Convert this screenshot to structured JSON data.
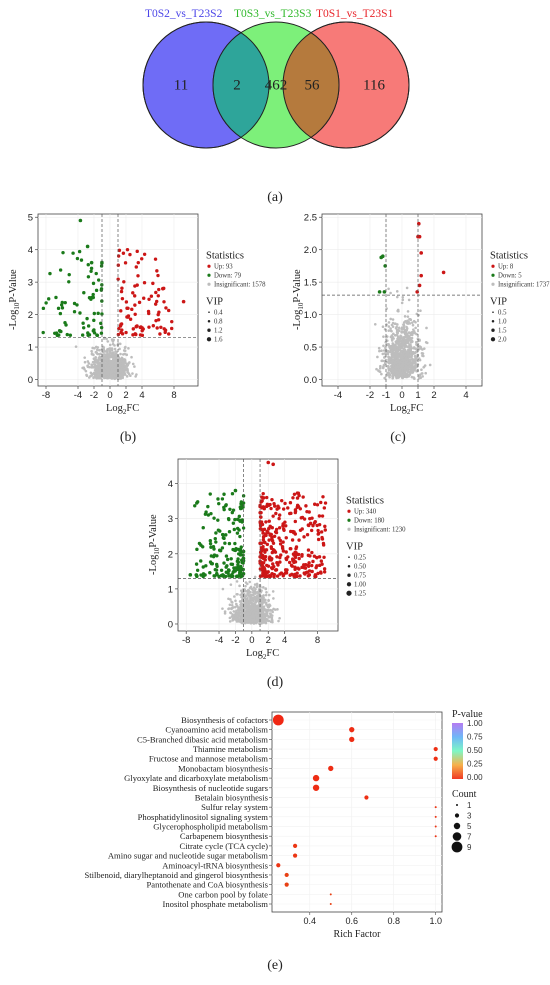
{
  "venn": {
    "sets": [
      {
        "label": "T0S2_vs_T23S2",
        "color": "#4b45e8",
        "fill": "#6f6cf6"
      },
      {
        "label": "T0S3_vs_T23S3",
        "color": "#38c928",
        "fill": "#7df07a"
      },
      {
        "label": "T0S1_vs_T23S1",
        "color": "#e8242a",
        "fill": "#f77a78"
      }
    ],
    "regions": {
      "only_a": "11",
      "a_and_b": "2",
      "only_b": "462",
      "b_and_c": "56",
      "only_c": "116"
    },
    "overlap_colors": {
      "a_and_b": "#2ea59a",
      "b_and_c": "#b57a3d"
    }
  },
  "panel_labels": {
    "a": "(a)",
    "b": "(b)",
    "c": "(c)",
    "d": "(d)",
    "e": "(e)"
  },
  "volcano": {
    "ylabel": "-Log",
    "ylabel_sub": "10",
    "ylabel_tail": "P-Value",
    "xlabel": "Log",
    "xlabel_sub": "2",
    "xlabel_tail": "FC",
    "stats_title": "Statistics",
    "vip_title": "VIP",
    "colors": {
      "up": "#cc1616",
      "down": "#1a7a1a",
      "ns": "#bdbdbd"
    }
  },
  "chart_data": [
    {
      "type": "scatter",
      "panel": "b",
      "xlim": [
        -9,
        11
      ],
      "ylim": [
        -0.2,
        5.1
      ],
      "xticks": [
        "-8",
        "-4",
        "-2",
        "0",
        "2",
        "4",
        "8"
      ],
      "xtick_values": [
        -8,
        -4,
        -2,
        0,
        2,
        4,
        8
      ],
      "yticks": [
        "0",
        "1",
        "2",
        "3",
        "4",
        "5"
      ],
      "ytick_values": [
        0,
        1,
        2,
        3,
        4,
        5
      ],
      "threshold_y": 1.3,
      "threshold_x": [
        -1,
        1
      ],
      "legend": {
        "up": "Up: 93",
        "down": "Down: 79",
        "ns": "Insignificant: 1578"
      },
      "vip_levels": [
        "0.4",
        "0.8",
        "1.2",
        "1.6"
      ],
      "counts": {
        "up": 93,
        "down": 79,
        "ns": 1578
      },
      "highlights": [
        {
          "x": -3.7,
          "y": 4.9,
          "group": "down"
        },
        {
          "x": -2.8,
          "y": 4.1,
          "group": "down"
        },
        {
          "x": -2.3,
          "y": 3.6,
          "group": "down"
        },
        {
          "x": 6.6,
          "y": 2.8,
          "group": "up"
        },
        {
          "x": 9.2,
          "y": 2.4,
          "group": "up"
        }
      ],
      "up_x_range": [
        1,
        8
      ],
      "down_x_range": [
        -8.5,
        -1
      ]
    },
    {
      "type": "scatter",
      "panel": "c",
      "xlim": [
        -5,
        5
      ],
      "ylim": [
        -0.1,
        2.55
      ],
      "xticks": [
        "-4",
        "-2",
        "-1",
        "0",
        "1",
        "2",
        "4"
      ],
      "xtick_values": [
        -4,
        -2,
        -1,
        0,
        1,
        2,
        4
      ],
      "yticks": [
        "0.0",
        "0.5",
        "1.0",
        "1.5",
        "2.0",
        "2.5"
      ],
      "ytick_values": [
        0,
        0.5,
        1,
        1.5,
        2,
        2.5
      ],
      "threshold_y": 1.3,
      "threshold_x": [
        -1,
        1
      ],
      "legend": {
        "up": "Up: 8",
        "down": "Down: 5",
        "ns": "Insignificant: 1737"
      },
      "vip_levels": [
        "0.5",
        "1.0",
        "1.5",
        "2.0"
      ],
      "counts": {
        "up": 8,
        "down": 5,
        "ns": 1737
      },
      "highlights": [
        {
          "x": 1.05,
          "y": 2.4,
          "group": "up"
        },
        {
          "x": 1.1,
          "y": 2.2,
          "group": "up"
        },
        {
          "x": 1.2,
          "y": 1.95,
          "group": "up"
        },
        {
          "x": 1.2,
          "y": 1.6,
          "group": "up"
        },
        {
          "x": 2.6,
          "y": 1.65,
          "group": "up"
        },
        {
          "x": 1.1,
          "y": 1.45,
          "group": "up"
        },
        {
          "x": 0.95,
          "y": 1.35,
          "group": "up"
        },
        {
          "x": 1.0,
          "y": 2.2,
          "group": "up"
        },
        {
          "x": -1.2,
          "y": 1.9,
          "group": "down"
        },
        {
          "x": -1.3,
          "y": 1.88,
          "group": "down"
        },
        {
          "x": -1.05,
          "y": 1.75,
          "group": "down"
        },
        {
          "x": -1.4,
          "y": 1.35,
          "group": "down"
        },
        {
          "x": -1.1,
          "y": 1.35,
          "group": "down"
        }
      ],
      "up_x_range": [
        1,
        2.7
      ],
      "down_x_range": [
        -1.5,
        -1
      ]
    },
    {
      "type": "scatter",
      "panel": "d",
      "xlim": [
        -9,
        10.5
      ],
      "ylim": [
        -0.2,
        4.7
      ],
      "xticks": [
        "-8",
        "-4",
        "-2",
        "0",
        "2",
        "4",
        "8"
      ],
      "xtick_values": [
        -8,
        -4,
        -2,
        0,
        2,
        4,
        8
      ],
      "yticks": [
        "0",
        "1",
        "2",
        "3",
        "4"
      ],
      "ytick_values": [
        0,
        1,
        2,
        3,
        4
      ],
      "threshold_y": 1.3,
      "threshold_x": [
        -1,
        1
      ],
      "legend": {
        "up": "Up: 340",
        "down": "Down: 180",
        "ns": "Insignificant: 1230"
      },
      "vip_levels": [
        "0.25",
        "0.50",
        "0.75",
        "1.00",
        "1.25"
      ],
      "counts": {
        "up": 340,
        "down": 180,
        "ns": 1230
      },
      "highlights": [
        {
          "x": 2.0,
          "y": 4.6,
          "group": "up"
        },
        {
          "x": 2.6,
          "y": 4.55,
          "group": "up"
        },
        {
          "x": -2.0,
          "y": 3.8,
          "group": "down"
        },
        {
          "x": -7.5,
          "y": 1.4,
          "group": "down"
        }
      ],
      "up_x_range": [
        1,
        9
      ],
      "down_x_range": [
        -7,
        -1
      ]
    },
    {
      "type": "scatter",
      "panel": "e",
      "xlabel": "Rich Factor",
      "ylabel": "",
      "xlim": [
        0.22,
        1.03
      ],
      "xticks": [
        "0.4",
        "0.6",
        "0.8",
        "1.0"
      ],
      "xtick_values": [
        0.4,
        0.6,
        0.8,
        1.0
      ],
      "categories": [
        "Biosynthesis of cofactors",
        "Cyanoamino acid metabolism",
        "C5-Branched dibasic acid metabolism",
        "Thiamine metabolism",
        "Fructose and mannose metabolism",
        "Monobactam biosynthesis",
        "Glyoxylate and dicarboxylate metabolism",
        "Biosynthesis of nucleotide sugars",
        "Betalain biosynthesis",
        "Sulfur relay system",
        "Phosphatidylinositol signaling system",
        "Glycerophospholipid metabolism",
        "Carbapenem biosynthesis",
        "Citrate cycle (TCA cycle)",
        "Amino sugar and nucleotide sugar metabolism",
        "Aminoacyl-tRNA biosynthesis",
        "Stilbenoid, diarylheptanoid and gingerol biosynthesis",
        "Pantothenate and CoA biosynthesis",
        "One carbon pool by folate",
        "Inositol phosphate metabolism"
      ],
      "rich_factor": [
        0.25,
        0.6,
        0.6,
        1.0,
        1.0,
        0.5,
        0.43,
        0.43,
        0.67,
        1.0,
        1.0,
        1.0,
        1.0,
        0.33,
        0.33,
        0.25,
        0.29,
        0.29,
        0.5,
        0.5
      ],
      "count": [
        9,
        4,
        4,
        3,
        3,
        4,
        5,
        5,
        3,
        1,
        1,
        1,
        1,
        3,
        3,
        3,
        3,
        3,
        1,
        1
      ],
      "pvalue": [
        0.0,
        0.02,
        0.02,
        0.03,
        0.03,
        0.02,
        0.02,
        0.02,
        0.03,
        0.05,
        0.05,
        0.05,
        0.05,
        0.06,
        0.06,
        0.05,
        0.1,
        0.1,
        0.1,
        0.1
      ],
      "colorbar": {
        "title": "P-value",
        "ticks": [
          "1.00",
          "0.75",
          "0.50",
          "0.25",
          "0.00"
        ]
      },
      "size_legend": {
        "title": "Count",
        "levels": [
          "1",
          "3",
          "5",
          "7",
          "9"
        ]
      }
    }
  ]
}
